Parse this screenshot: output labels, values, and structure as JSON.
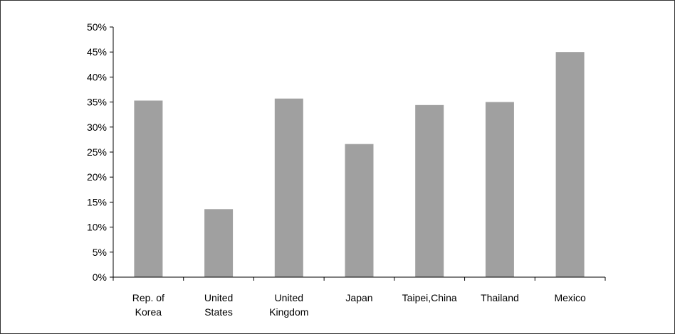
{
  "chart_data": {
    "type": "bar",
    "categories": [
      [
        "Rep. of",
        "Korea"
      ],
      [
        "United",
        "States"
      ],
      [
        "United",
        "Kingdom"
      ],
      [
        "Japan"
      ],
      [
        "Taipei,China"
      ],
      [
        "Thailand"
      ],
      [
        "Mexico"
      ]
    ],
    "values": [
      35.3,
      13.6,
      35.7,
      26.6,
      34.4,
      35.0,
      45.0
    ],
    "y_unit": "%",
    "ylim": [
      0,
      50
    ],
    "yticks": [
      0,
      5,
      10,
      15,
      20,
      25,
      30,
      35,
      40,
      45,
      50
    ],
    "ytick_labels": [
      "0%",
      "5%",
      "10%",
      "15%",
      "20%",
      "25%",
      "30%",
      "35%",
      "40%",
      "45%",
      "50%"
    ],
    "grid": false,
    "legend": "none",
    "bar_color": "#a0a0a0",
    "axis_color": "#000000"
  }
}
